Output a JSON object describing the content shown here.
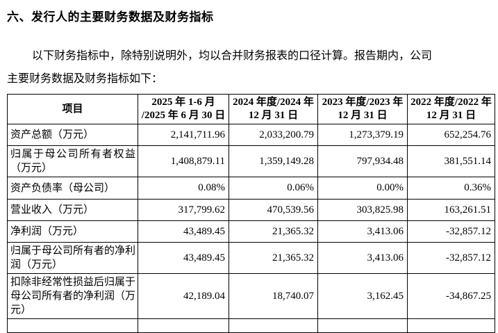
{
  "page": {
    "heading": "六、发行人的主要财务数据及财务指标",
    "intro_line1": "以下财务指标中，除特别说明外，均以合并财务报表的口径计算。报告期内，公司",
    "intro_line2": "主要财务数据及财务指标如下："
  },
  "table": {
    "header": {
      "item_label": "项目",
      "periods": [
        {
          "line1": "2025 年 1-6 月",
          "line2": "/2025 年 6 月 30 日"
        },
        {
          "line1": "2024 年度/2024 年",
          "line2": "12 月 31 日"
        },
        {
          "line1": "2023 年度/2023 年",
          "line2": "12 月 31 日"
        },
        {
          "line1": "2022 年度/2022 年",
          "line2": "12 月 31 日"
        }
      ]
    },
    "rows": [
      {
        "label": "资产总额（万元）",
        "values": [
          "2,141,711.96",
          "2,033,200.79",
          "1,273,379.19",
          "652,254.76"
        ]
      },
      {
        "label": "归属于母公司所有者权益（万元）",
        "values": [
          "1,408,879.11",
          "1,359,149.28",
          "797,934.48",
          "381,551.14"
        ]
      },
      {
        "label": "资产负债率（母公司）",
        "values": [
          "0.08%",
          "0.06%",
          "0.00%",
          "0.36%"
        ]
      },
      {
        "label": "营业收入（万元）",
        "values": [
          "317,799.62",
          "470,539.56",
          "303,825.98",
          "163,261.51"
        ]
      },
      {
        "label": "净利润（万元）",
        "values": [
          "43,489.45",
          "21,365.32",
          "3,413.06",
          "-32,857.12"
        ]
      },
      {
        "label": "归属于母公司所有者的净利润（万元）",
        "values": [
          "43,489.45",
          "21,365.32",
          "3,413.06",
          "-32,857.12"
        ]
      },
      {
        "label": "扣除非经常性损益后归属于母公司所有者的净利润（万元）",
        "values": [
          "42,189.04",
          "18,740.07",
          "3,162.45",
          "-34,867.25"
        ]
      }
    ]
  }
}
